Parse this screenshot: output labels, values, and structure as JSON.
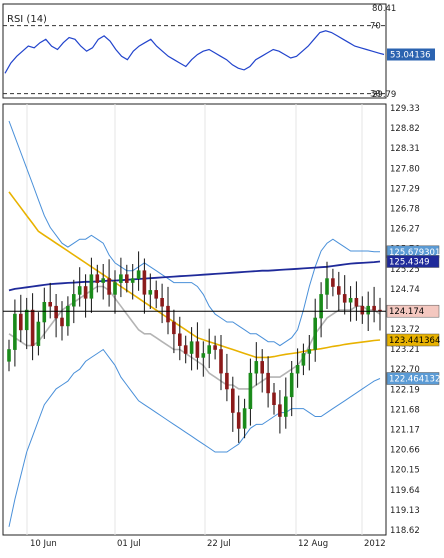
{
  "rsi_panel": {
    "label": "RSI (14)",
    "ticks": [
      "80.41",
      "70",
      "30",
      "29.79"
    ],
    "tick_values": [
      80.41,
      70,
      30,
      29.79
    ],
    "current_tag": "53.04136",
    "colors": {
      "line": "#2244cc",
      "tag_bg": "#2b63b0",
      "tag_text": "#ffffff"
    }
  },
  "price_panel": {
    "y_ticks": [
      "129.33",
      "128.82",
      "128.31",
      "127.80",
      "127.29",
      "126.78",
      "126.27",
      "125.76",
      "125.25",
      "124.74",
      "124.23",
      "123.72",
      "123.21",
      "122.70",
      "122.19",
      "121.68",
      "121.17",
      "120.66",
      "120.15",
      "119.64",
      "119.13",
      "118.62"
    ],
    "y_tick_values": [
      129.33,
      128.82,
      128.31,
      127.8,
      127.29,
      126.78,
      126.27,
      125.76,
      125.25,
      124.74,
      124.23,
      123.72,
      123.21,
      122.7,
      122.19,
      121.68,
      121.17,
      120.66,
      120.15,
      119.64,
      119.13,
      118.62
    ],
    "x_ticks": [
      "10 Jun",
      "01 Jul",
      "22 Jul",
      "12 Aug",
      "2012"
    ],
    "value_tags": [
      {
        "label": "125.679301",
        "value": 125.679301,
        "bg": "#5b9bd5",
        "fg": "#ffffff"
      },
      {
        "label": "125.4349",
        "value": 125.4349,
        "bg": "#1f2a9a",
        "fg": "#ffffff"
      },
      {
        "label": "124.174",
        "value": 124.174,
        "bg": "#f4c8c0",
        "fg": "#000000"
      },
      {
        "label": "123.441364",
        "value": 123.441364,
        "bg": "#e8b200",
        "fg": "#000000"
      },
      {
        "label": "122.464132",
        "value": 122.464132,
        "bg": "#5b9bd5",
        "fg": "#ffffff"
      }
    ],
    "colors": {
      "up": "#1a8a1a",
      "down": "#8b1a1a",
      "bb": "#4a90d9",
      "ma_long": "#1f2a9a",
      "ma_mid": "#e8b200",
      "ma_short": "#b4b4b4",
      "last_line": "#000000"
    }
  },
  "chart_data": [
    {
      "type": "line",
      "series": [
        {
          "values": [
            42,
            48,
            52,
            55,
            58,
            57,
            60,
            62,
            58,
            56,
            60,
            63,
            62,
            58,
            55,
            57,
            62,
            64,
            61,
            56,
            52,
            50,
            55,
            58,
            60,
            62,
            58,
            55,
            52,
            50,
            48,
            46,
            50,
            53,
            55,
            56,
            54,
            52,
            50,
            47,
            45,
            44,
            46,
            50,
            52,
            54,
            56,
            55,
            53,
            51,
            52,
            55,
            58,
            62,
            66,
            67,
            66,
            64,
            62,
            60,
            58,
            57,
            56,
            55,
            54,
            53.04
          ]
        }
      ],
      "ylim": [
        29.79,
        80.41
      ],
      "reference_lines": [
        70,
        30
      ]
    },
    {
      "type": "line",
      "x_labels": [
        "10 Jun",
        "01 Jul",
        "22 Jul",
        "12 Aug",
        "2012"
      ],
      "ylim": [
        118.62,
        129.33
      ],
      "series": [
        {
          "values": [
            123.2,
            124.1,
            123.7,
            124.2,
            123.3,
            123.9,
            124.4,
            124.3,
            124.0,
            123.8,
            124.3,
            124.6,
            124.8,
            124.5,
            125.1,
            124.9,
            125.0,
            124.6,
            124.9,
            125.1,
            124.9,
            125.0,
            125.2,
            124.6,
            124.7,
            124.5,
            124.3,
            123.9,
            123.6,
            123.3,
            123.1,
            123.4,
            123.0,
            123.1,
            123.3,
            123.2,
            122.6,
            122.2,
            121.6,
            121.2,
            121.7,
            122.6,
            122.9,
            122.6,
            122.1,
            121.8,
            121.5,
            122.0,
            122.6,
            122.8,
            123.1,
            123.2,
            124.0,
            124.6,
            125.0,
            124.8,
            124.6,
            124.4,
            124.5,
            124.3,
            124.1,
            124.3,
            124.2,
            124.174
          ]
        },
        {
          "values": [
            124.7,
            124.74,
            124.76,
            124.78,
            124.8,
            124.82,
            124.84,
            124.86,
            124.87,
            124.88,
            124.89,
            124.9,
            124.91,
            124.92,
            124.92,
            124.93,
            124.94,
            124.95,
            124.95,
            124.96,
            124.97,
            124.98,
            124.99,
            125.0,
            125.01,
            125.02,
            125.03,
            125.04,
            125.05,
            125.06,
            125.07,
            125.08,
            125.09,
            125.1,
            125.11,
            125.12,
            125.13,
            125.14,
            125.15,
            125.16,
            125.17,
            125.18,
            125.19,
            125.2,
            125.2,
            125.21,
            125.22,
            125.23,
            125.24,
            125.25,
            125.26,
            125.27,
            125.28,
            125.29,
            125.3,
            125.32,
            125.34,
            125.36,
            125.38,
            125.39,
            125.4,
            125.41,
            125.42,
            125.4349
          ]
        },
        {
          "values": [
            127.2,
            127.0,
            126.8,
            126.6,
            126.4,
            126.2,
            126.1,
            126.0,
            125.9,
            125.8,
            125.7,
            125.6,
            125.5,
            125.4,
            125.3,
            125.2,
            125.1,
            125.0,
            124.9,
            124.8,
            124.7,
            124.6,
            124.5,
            124.4,
            124.3,
            124.2,
            124.1,
            124.0,
            123.9,
            123.8,
            123.7,
            123.6,
            123.5,
            123.45,
            123.4,
            123.35,
            123.3,
            123.25,
            123.2,
            123.15,
            123.1,
            123.05,
            123.0,
            123.0,
            123.0,
            123.02,
            123.05,
            123.08,
            123.1,
            123.12,
            123.15,
            123.18,
            123.2,
            123.22,
            123.25,
            123.28,
            123.3,
            123.33,
            123.35,
            123.37,
            123.39,
            123.41,
            123.43,
            123.441364
          ]
        },
        {
          "values": [
            123.6,
            123.5,
            123.4,
            123.3,
            123.3,
            123.4,
            123.6,
            123.8,
            124.0,
            124.2,
            124.3,
            124.4,
            124.5,
            124.6,
            124.7,
            124.8,
            124.8,
            124.7,
            124.5,
            124.3,
            124.1,
            123.9,
            123.7,
            123.6,
            123.6,
            123.5,
            123.4,
            123.3,
            123.2,
            123.2,
            123.1,
            123.0,
            122.9,
            122.8,
            122.6,
            122.5,
            122.4,
            122.3,
            122.3,
            122.2,
            122.2,
            122.2,
            122.3,
            122.4,
            122.5,
            122.5,
            122.5,
            122.6,
            122.7,
            122.8,
            123.0,
            123.3,
            123.6,
            123.8,
            124.0,
            124.1,
            124.2,
            124.2,
            124.2,
            124.3,
            124.3,
            124.2,
            124.2,
            124.1
          ]
        },
        {
          "values": [
            129.0,
            128.6,
            128.2,
            127.8,
            127.4,
            127.0,
            126.6,
            126.3,
            126.1,
            125.9,
            125.8,
            125.9,
            126.0,
            126.0,
            126.1,
            126.0,
            125.9,
            125.6,
            125.4,
            125.3,
            125.2,
            125.2,
            125.3,
            125.4,
            125.3,
            125.2,
            125.1,
            125.0,
            124.9,
            124.9,
            124.9,
            124.9,
            124.8,
            124.6,
            124.3,
            124.1,
            124.0,
            123.9,
            123.9,
            123.8,
            123.7,
            123.6,
            123.6,
            123.5,
            123.4,
            123.4,
            123.3,
            123.4,
            123.5,
            123.7,
            124.2,
            124.8,
            125.3,
            125.7,
            125.9,
            126.0,
            125.9,
            125.8,
            125.7,
            125.7,
            125.7,
            125.7,
            125.68,
            125.679301
          ]
        },
        {
          "values": [
            118.7,
            119.4,
            120.0,
            120.6,
            121.0,
            121.4,
            121.8,
            122.0,
            122.2,
            122.3,
            122.4,
            122.6,
            122.7,
            122.9,
            123.0,
            123.1,
            123.2,
            123.0,
            122.8,
            122.5,
            122.3,
            122.1,
            121.9,
            121.8,
            121.7,
            121.6,
            121.5,
            121.4,
            121.3,
            121.2,
            121.1,
            121.0,
            120.9,
            120.8,
            120.7,
            120.6,
            120.6,
            120.6,
            120.7,
            120.8,
            121.0,
            121.2,
            121.3,
            121.3,
            121.4,
            121.5,
            121.6,
            121.6,
            121.7,
            121.7,
            121.7,
            121.6,
            121.5,
            121.5,
            121.6,
            121.7,
            121.8,
            121.9,
            122.0,
            122.1,
            122.2,
            122.3,
            122.4,
            122.464132
          ]
        }
      ]
    }
  ]
}
